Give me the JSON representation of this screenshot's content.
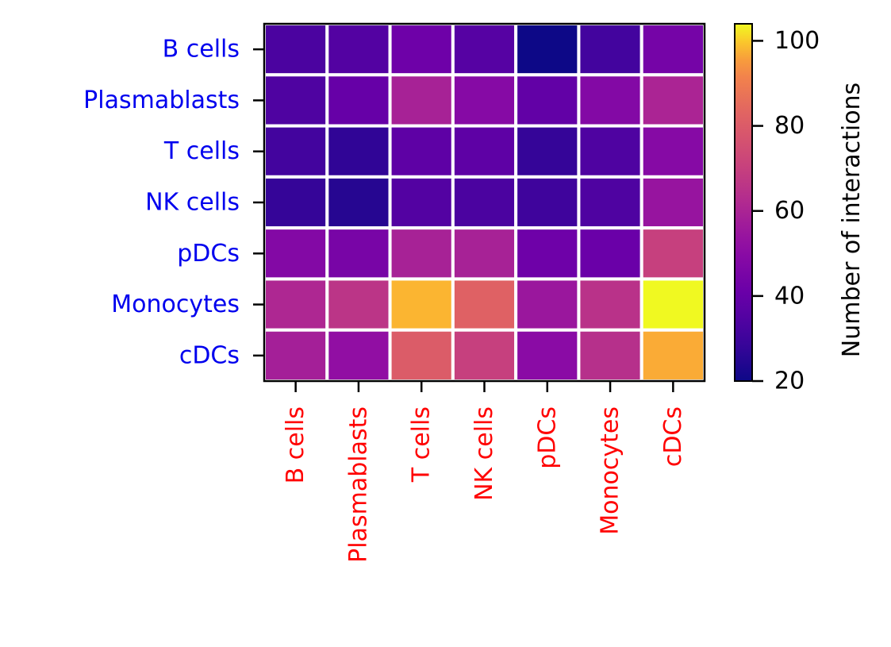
{
  "chart_data": {
    "type": "heatmap",
    "rows": [
      "B cells",
      "Plasmablasts",
      "T cells",
      "NK cells",
      "pDCs",
      "Monocytes",
      "cDCs"
    ],
    "columns": [
      "B cells",
      "Plasmablasts",
      "T cells",
      "NK cells",
      "pDCs",
      "Monocytes",
      "cDCs"
    ],
    "values": [
      [
        33,
        35,
        42,
        36,
        20,
        31,
        44
      ],
      [
        34,
        40,
        59,
        49,
        39,
        48,
        60
      ],
      [
        31,
        27,
        38,
        38,
        28,
        34,
        49
      ],
      [
        28,
        25,
        35,
        33,
        30,
        34,
        54
      ],
      [
        48,
        45,
        59,
        59,
        42,
        41,
        70
      ],
      [
        61,
        66,
        98,
        82,
        55,
        65,
        104
      ],
      [
        58,
        52,
        80,
        70,
        50,
        64,
        97
      ]
    ],
    "colorbar": {
      "label": "Number of interactions",
      "min": 20,
      "max": 104,
      "ticks": [
        20,
        40,
        60,
        80,
        100
      ],
      "colormap": "plasma"
    },
    "row_label_color": "#0000ee",
    "column_label_color": "#ff0000",
    "grid": "white cell borders",
    "legend": "colorbar right"
  }
}
